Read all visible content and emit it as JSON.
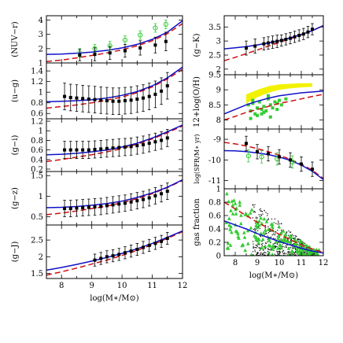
{
  "colors": {
    "model_solid": "#1010c8",
    "model_dashed": "#d01010",
    "obs_black": "#000000",
    "obs_green": "#33cc33",
    "obs_yellow": "#f2f200"
  },
  "chart_data": [
    {
      "type": "line",
      "ylabel": "(NUV−r)",
      "xlim": [
        7.5,
        12
      ],
      "ylim": [
        1,
        4.3
      ],
      "yticks": [
        1,
        2,
        3,
        4
      ],
      "xticks": [
        8,
        9,
        10,
        11,
        12
      ],
      "xticklabels": [],
      "model_solid": {
        "x": [
          7.5,
          8.0,
          8.5,
          9.0,
          9.5,
          10.0,
          10.5,
          11.0,
          11.5,
          12.0
        ],
        "y": [
          1.6,
          1.62,
          1.68,
          1.76,
          1.88,
          2.05,
          2.3,
          2.65,
          3.15,
          3.95
        ]
      },
      "model_dashed": {
        "x": [
          7.5,
          8.0,
          8.5,
          9.0,
          9.5,
          10.0,
          10.5,
          11.0,
          11.5,
          12.0
        ],
        "y": [
          1.1,
          1.2,
          1.35,
          1.52,
          1.7,
          1.92,
          2.2,
          2.55,
          3.05,
          3.75
        ]
      },
      "obs_black": {
        "x": [
          8.6,
          9.1,
          9.6,
          10.1,
          10.6,
          11.1,
          11.45
        ],
        "y": [
          1.55,
          1.6,
          1.7,
          1.85,
          2.05,
          2.25,
          2.5
        ],
        "err": [
          0.4,
          0.45,
          0.45,
          0.45,
          0.5,
          0.55,
          0.65
        ]
      },
      "obs_green": {
        "x": [
          8.6,
          9.1,
          9.6,
          10.1,
          10.6,
          11.1,
          11.45
        ],
        "y": [
          1.7,
          2.0,
          2.2,
          2.6,
          2.95,
          3.45,
          3.7
        ],
        "err": [
          0.3,
          0.3,
          0.3,
          0.3,
          0.3,
          0.3,
          0.3
        ]
      }
    },
    {
      "type": "line",
      "ylabel": "(u−g)",
      "xlim": [
        7.5,
        12
      ],
      "ylim": [
        0.5,
        1.55
      ],
      "yticks": [
        0.6,
        0.8,
        1,
        1.2,
        1.4
      ],
      "xticks": [
        8,
        9,
        10,
        11,
        12
      ],
      "xticklabels": [],
      "model_solid": {
        "x": [
          7.5,
          8.0,
          8.5,
          9.0,
          9.5,
          10.0,
          10.5,
          11.0,
          11.5,
          12.0
        ],
        "y": [
          0.82,
          0.83,
          0.84,
          0.86,
          0.89,
          0.94,
          1.01,
          1.12,
          1.27,
          1.47
        ]
      },
      "model_dashed": {
        "x": [
          7.5,
          8.0,
          8.5,
          9.0,
          9.5,
          10.0,
          10.5,
          11.0,
          11.5,
          12.0
        ],
        "y": [
          0.7,
          0.73,
          0.76,
          0.8,
          0.85,
          0.91,
          0.99,
          1.1,
          1.25,
          1.43
        ]
      },
      "obs_black": {
        "x": [
          8.1,
          8.3,
          8.5,
          8.7,
          8.9,
          9.1,
          9.3,
          9.5,
          9.7,
          9.9,
          10.1,
          10.3,
          10.5,
          10.7,
          10.9,
          11.1,
          11.3,
          11.5
        ],
        "y": [
          0.92,
          0.9,
          0.89,
          0.88,
          0.87,
          0.86,
          0.85,
          0.84,
          0.83,
          0.83,
          0.84,
          0.85,
          0.87,
          0.89,
          0.92,
          0.96,
          1.02,
          1.12
        ],
        "err": [
          0.25,
          0.25,
          0.25,
          0.25,
          0.25,
          0.25,
          0.25,
          0.25,
          0.25,
          0.25,
          0.25,
          0.25,
          0.25,
          0.25,
          0.25,
          0.25,
          0.25,
          0.25
        ]
      }
    },
    {
      "type": "line",
      "ylabel": "(g−i)",
      "xlim": [
        7.5,
        12
      ],
      "ylim": [
        0.15,
        1.25
      ],
      "yticks": [
        0.2,
        0.4,
        0.6,
        0.8,
        1,
        1.2
      ],
      "xticks": [
        8,
        9,
        10,
        11,
        12
      ],
      "xticklabels": [],
      "model_solid": {
        "x": [
          7.5,
          8.0,
          8.5,
          9.0,
          9.5,
          10.0,
          10.5,
          11.0,
          11.5,
          12.0
        ],
        "y": [
          0.5,
          0.51,
          0.53,
          0.56,
          0.6,
          0.66,
          0.74,
          0.85,
          0.98,
          1.12
        ]
      },
      "model_dashed": {
        "x": [
          7.5,
          8.0,
          8.5,
          9.0,
          9.5,
          10.0,
          10.5,
          11.0,
          11.5,
          12.0
        ],
        "y": [
          0.36,
          0.4,
          0.45,
          0.5,
          0.56,
          0.63,
          0.72,
          0.83,
          0.96,
          1.1
        ]
      },
      "obs_black": {
        "x": [
          8.1,
          8.3,
          8.5,
          8.7,
          8.9,
          9.1,
          9.3,
          9.5,
          9.7,
          9.9,
          10.1,
          10.3,
          10.5,
          10.7,
          10.9,
          11.1,
          11.3,
          11.5
        ],
        "y": [
          0.6,
          0.6,
          0.6,
          0.6,
          0.6,
          0.61,
          0.62,
          0.63,
          0.64,
          0.65,
          0.66,
          0.67,
          0.69,
          0.71,
          0.74,
          0.77,
          0.8,
          0.85
        ],
        "err": [
          0.18,
          0.18,
          0.18,
          0.18,
          0.18,
          0.18,
          0.18,
          0.18,
          0.18,
          0.18,
          0.18,
          0.18,
          0.18,
          0.18,
          0.18,
          0.18,
          0.18,
          0.18
        ]
      }
    },
    {
      "type": "line",
      "ylabel": "(g−z)",
      "xlim": [
        7.5,
        12
      ],
      "ylim": [
        0.3,
        1.6
      ],
      "yticks": [
        0.5,
        1,
        1.5
      ],
      "xticks": [
        8,
        9,
        10,
        11,
        12
      ],
      "xticklabels": [],
      "model_solid": {
        "x": [
          7.5,
          8.0,
          8.5,
          9.0,
          9.5,
          10.0,
          10.5,
          11.0,
          11.5,
          12.0
        ],
        "y": [
          0.72,
          0.73,
          0.75,
          0.78,
          0.82,
          0.88,
          0.97,
          1.08,
          1.22,
          1.4
        ]
      },
      "model_dashed": {
        "x": [
          7.5,
          8.0,
          8.5,
          9.0,
          9.5,
          10.0,
          10.5,
          11.0,
          11.5,
          12.0
        ],
        "y": [
          0.55,
          0.59,
          0.64,
          0.7,
          0.76,
          0.84,
          0.94,
          1.06,
          1.21,
          1.38
        ]
      },
      "obs_black": {
        "x": [
          8.1,
          8.3,
          8.5,
          8.7,
          8.9,
          9.1,
          9.3,
          9.5,
          9.7,
          9.9,
          10.1,
          10.3,
          10.5,
          10.7,
          10.9,
          11.1,
          11.3,
          11.5
        ],
        "y": [
          0.7,
          0.7,
          0.71,
          0.72,
          0.73,
          0.74,
          0.75,
          0.77,
          0.79,
          0.81,
          0.83,
          0.86,
          0.89,
          0.92,
          0.96,
          1.01,
          1.06,
          1.12
        ],
        "err": [
          0.2,
          0.2,
          0.2,
          0.2,
          0.2,
          0.2,
          0.2,
          0.2,
          0.2,
          0.2,
          0.2,
          0.2,
          0.2,
          0.2,
          0.2,
          0.2,
          0.2,
          0.2
        ]
      }
    },
    {
      "type": "line",
      "ylabel": "(g−J)",
      "xlabel": "log(M∗/M⊙)",
      "xlim": [
        7.5,
        12
      ],
      "ylim": [
        1.35,
        2.95
      ],
      "yticks": [
        1.5,
        2,
        2.5
      ],
      "xticks": [
        8,
        9,
        10,
        11,
        12
      ],
      "xticklabels": [
        "8",
        "9",
        "10",
        "11",
        "12"
      ],
      "model_solid": {
        "x": [
          7.5,
          8.0,
          8.5,
          9.0,
          9.5,
          10.0,
          10.5,
          11.0,
          11.5,
          12.0
        ],
        "y": [
          1.6,
          1.68,
          1.77,
          1.87,
          1.98,
          2.1,
          2.24,
          2.4,
          2.58,
          2.77
        ]
      },
      "model_dashed": {
        "x": [
          7.5,
          8.0,
          8.5,
          9.0,
          9.5,
          10.0,
          10.5,
          11.0,
          11.5,
          12.0
        ],
        "y": [
          1.45,
          1.55,
          1.66,
          1.78,
          1.9,
          2.04,
          2.19,
          2.36,
          2.55,
          2.75
        ]
      },
      "obs_black": {
        "x": [
          9.1,
          9.3,
          9.5,
          9.7,
          9.9,
          10.1,
          10.3,
          10.5,
          10.7,
          10.9,
          11.1,
          11.3,
          11.5
        ],
        "y": [
          1.9,
          1.95,
          2.0,
          2.03,
          2.07,
          2.12,
          2.17,
          2.22,
          2.28,
          2.34,
          2.4,
          2.46,
          2.55
        ],
        "err": [
          0.18,
          0.18,
          0.18,
          0.18,
          0.18,
          0.18,
          0.18,
          0.18,
          0.18,
          0.18,
          0.18,
          0.18,
          0.18
        ]
      }
    },
    {
      "type": "line",
      "ylabel": "(g−K)",
      "xlim": [
        7.5,
        12
      ],
      "ylim": [
        1.8,
        3.9
      ],
      "yticks": [
        2,
        2.5,
        3,
        3.5
      ],
      "xticks": [
        8,
        9,
        10,
        11,
        12
      ],
      "xticklabels": [],
      "model_solid": {
        "x": [
          7.5,
          8.0,
          8.5,
          9.0,
          9.5,
          10.0,
          10.5,
          11.0,
          11.5,
          12.0
        ],
        "y": [
          2.72,
          2.76,
          2.8,
          2.86,
          2.93,
          3.01,
          3.11,
          3.23,
          3.37,
          3.55
        ]
      },
      "model_dashed": {
        "x": [
          7.5,
          8.0,
          8.5,
          9.0,
          9.5,
          10.0,
          10.5,
          11.0,
          11.5,
          12.0
        ],
        "y": [
          2.3,
          2.42,
          2.55,
          2.68,
          2.82,
          2.95,
          3.08,
          3.22,
          3.37,
          3.55
        ]
      },
      "obs_black": {
        "x": [
          8.5,
          8.9,
          9.3,
          9.5,
          9.7,
          9.9,
          10.1,
          10.3,
          10.5,
          10.7,
          10.9,
          11.1,
          11.3,
          11.5
        ],
        "y": [
          2.75,
          2.82,
          2.9,
          2.93,
          2.96,
          2.99,
          3.02,
          3.06,
          3.1,
          3.15,
          3.2,
          3.25,
          3.32,
          3.42
        ],
        "err": [
          0.25,
          0.25,
          0.22,
          0.22,
          0.22,
          0.22,
          0.2,
          0.2,
          0.2,
          0.2,
          0.2,
          0.2,
          0.2,
          0.2
        ]
      }
    },
    {
      "type": "scatter",
      "ylabel": "12+log(O/H)",
      "xlim": [
        7.5,
        12
      ],
      "ylim": [
        7.7,
        9.5
      ],
      "yticks": [
        8,
        8.5,
        9,
        9.5
      ],
      "xticks": [
        8,
        9,
        10,
        11,
        12
      ],
      "xticklabels": [],
      "model_solid": {
        "x": [
          7.5,
          8.0,
          8.5,
          9.0,
          9.5,
          10.0,
          10.5,
          11.0,
          11.5,
          12.0
        ],
        "y": [
          8.2,
          8.35,
          8.5,
          8.62,
          8.72,
          8.8,
          8.85,
          8.9,
          8.93,
          8.96
        ]
      },
      "model_dashed": {
        "x": [
          7.5,
          8.0,
          8.5,
          9.0,
          9.5,
          10.0,
          10.5,
          11.0,
          11.5,
          12.0
        ],
        "y": [
          8.0,
          8.12,
          8.25,
          8.35,
          8.45,
          8.55,
          8.62,
          8.7,
          8.78,
          8.85
        ]
      },
      "obs_yellow": {
        "x": [
          8.5,
          9.0,
          9.5,
          10.0,
          10.5,
          11.0,
          11.5
        ],
        "y_low": [
          8.55,
          8.75,
          8.9,
          9.0,
          9.05,
          9.08,
          9.1
        ],
        "y_high": [
          8.85,
          9.0,
          9.12,
          9.18,
          9.2,
          9.22,
          9.22
        ]
      },
      "obs_green": {
        "x": [
          8.6,
          8.7,
          8.8,
          8.9,
          9.0,
          9.1,
          9.2,
          9.3,
          9.4,
          9.5,
          9.6,
          9.7,
          9.8,
          9.9,
          10.0,
          10.1,
          10.3,
          8.7,
          9.0,
          9.3,
          9.6,
          9.9,
          8.8,
          9.2,
          9.5
        ],
        "y": [
          8.5,
          8.3,
          8.55,
          8.2,
          8.4,
          8.6,
          8.35,
          8.45,
          8.3,
          8.7,
          8.5,
          8.4,
          8.6,
          8.55,
          8.65,
          8.5,
          8.7,
          8.05,
          8.15,
          8.25,
          8.1,
          8.35,
          8.65,
          8.2,
          8.8
        ]
      }
    },
    {
      "type": "line",
      "ylabel": "log(SFR/M∗ yr)",
      "xlim": [
        7.5,
        12
      ],
      "ylim": [
        -11.4,
        -8.5
      ],
      "yticks": [
        -11,
        -10,
        -9
      ],
      "xticks": [
        8,
        9,
        10,
        11,
        12
      ],
      "xticklabels": [],
      "model_solid": {
        "x": [
          7.5,
          8.0,
          8.5,
          9.0,
          9.5,
          10.0,
          10.5,
          11.0,
          11.5,
          12.0
        ],
        "y": [
          -9.55,
          -9.56,
          -9.6,
          -9.66,
          -9.74,
          -9.86,
          -10.02,
          -10.25,
          -10.55,
          -10.95
        ]
      },
      "model_dashed": {
        "x": [
          7.5,
          8.0,
          8.5,
          9.0,
          9.5,
          10.0,
          10.5,
          11.0,
          11.5,
          12.0
        ],
        "y": [
          -9.15,
          -9.22,
          -9.32,
          -9.45,
          -9.6,
          -9.77,
          -9.97,
          -10.2,
          -10.5,
          -10.9
        ]
      },
      "obs_black": {
        "x": [
          8.5,
          9.0,
          9.5,
          10.0,
          10.5,
          11.0,
          11.5
        ],
        "y": [
          -9.2,
          -9.6,
          -9.7,
          -9.85,
          -10.0,
          -10.2,
          -10.45
        ],
        "err": [
          0.35,
          0.35,
          0.35,
          0.35,
          0.35,
          0.35,
          0.35
        ]
      },
      "obs_green": {
        "x": [
          8.6,
          9.2,
          9.9,
          10.6
        ],
        "y": [
          -9.8,
          -9.85,
          -9.95,
          -10.1
        ],
        "err": [
          0.3,
          0.3,
          0.3,
          0.3
        ]
      }
    },
    {
      "type": "scatter",
      "ylabel": "gas fraction",
      "xlabel": "log(M∗/M⊙)",
      "xlim": [
        7.5,
        12
      ],
      "ylim": [
        0,
        1
      ],
      "yticks": [
        0,
        0.2,
        0.4,
        0.6,
        0.8,
        1
      ],
      "xticks": [
        8,
        9,
        10,
        11,
        12
      ],
      "xticklabels": [
        "8",
        "9",
        "10",
        "11",
        "12"
      ],
      "model_solid": {
        "x": [
          7.5,
          8.0,
          8.5,
          9.0,
          9.5,
          10.0,
          10.5,
          11.0,
          11.5,
          12.0
        ],
        "y": [
          0.52,
          0.46,
          0.4,
          0.33,
          0.27,
          0.21,
          0.16,
          0.11,
          0.07,
          0.04
        ]
      },
      "model_dashed": {
        "x": [
          7.5,
          8.0,
          8.5,
          9.0,
          9.5,
          10.0,
          10.5,
          11.0,
          11.5,
          12.0
        ],
        "y": [
          0.8,
          0.7,
          0.6,
          0.5,
          0.41,
          0.32,
          0.24,
          0.16,
          0.1,
          0.05
        ]
      }
    }
  ]
}
